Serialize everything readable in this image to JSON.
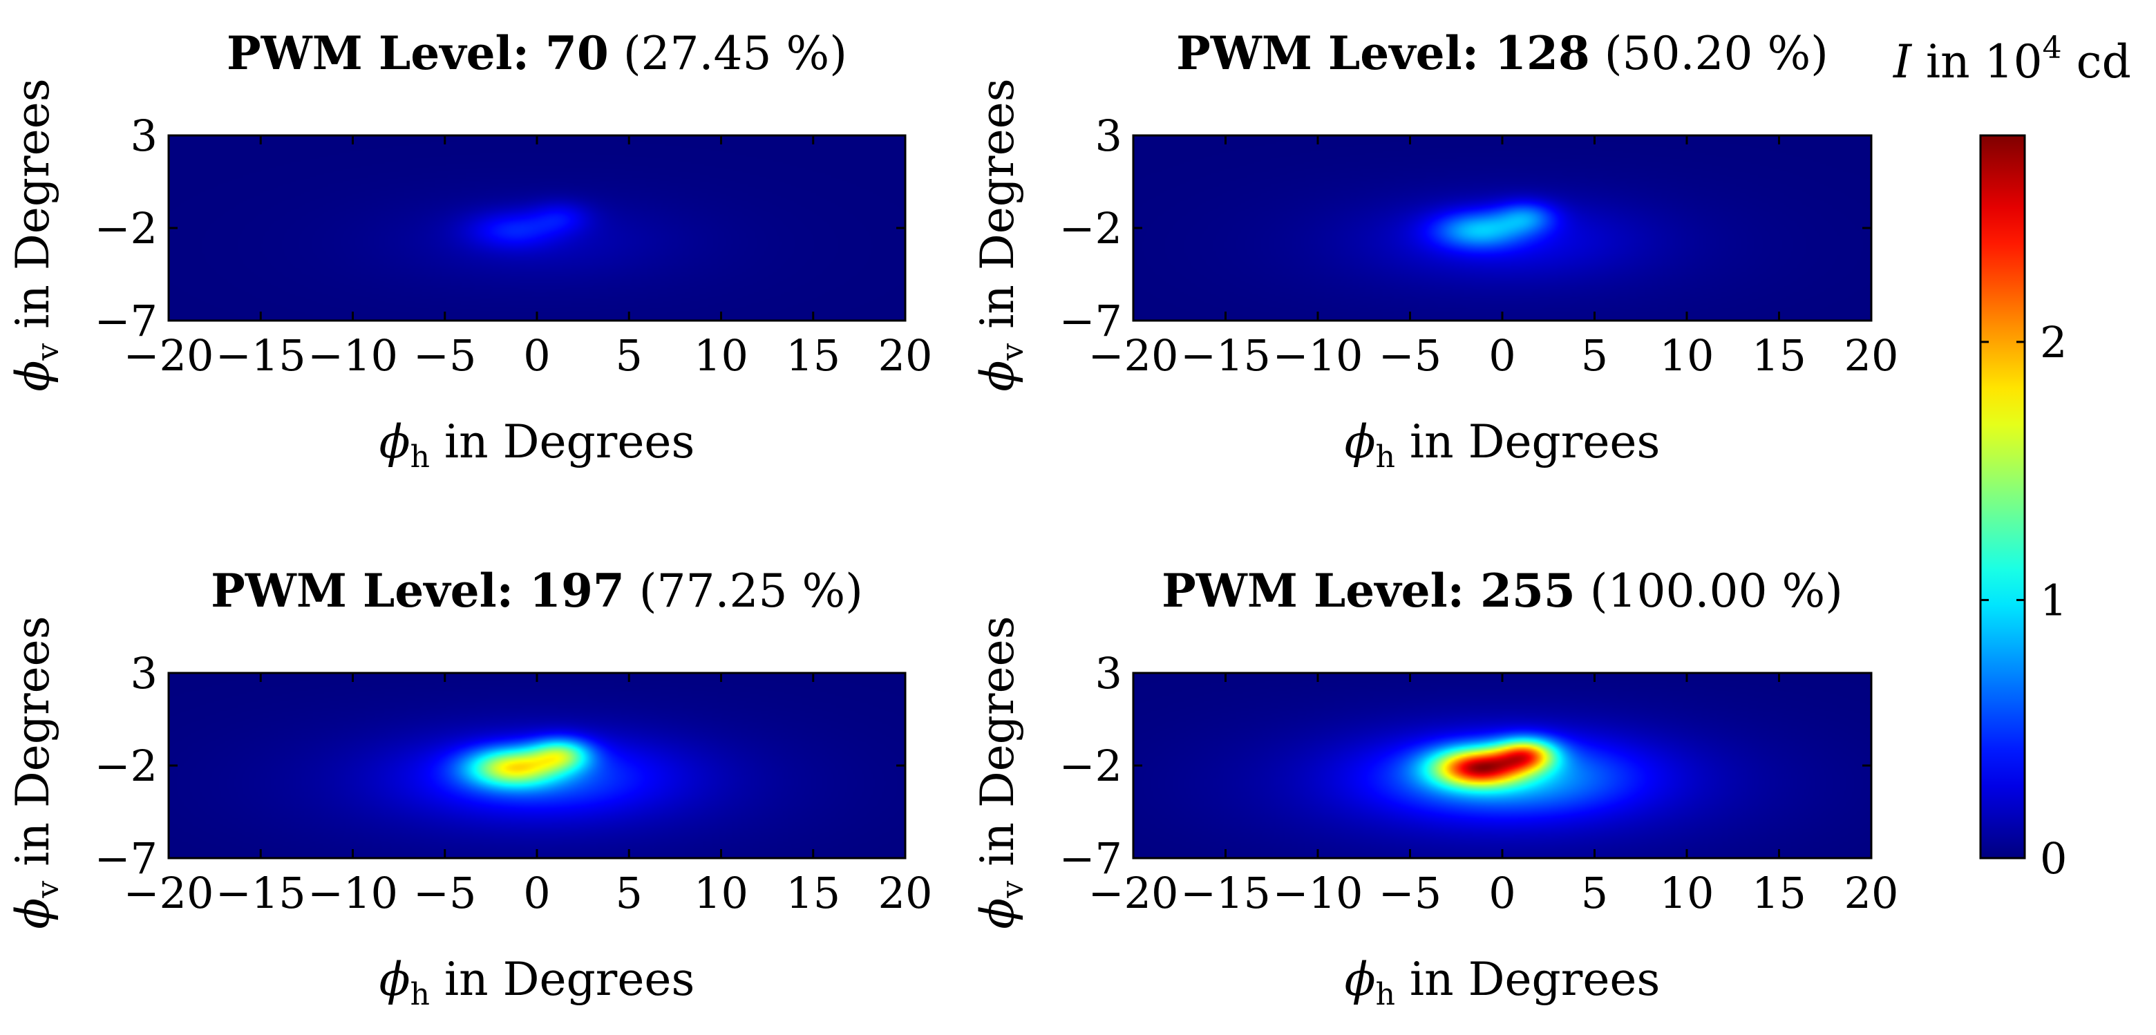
{
  "chart_data": [
    {
      "type": "heatmap",
      "title_bold": "PWM Level: 70",
      "title_plain": "(27.45 %)",
      "pwm_level": 70,
      "duty_percent": 27.45,
      "peak_intensity": 0.45,
      "xlim": [
        -20,
        20
      ],
      "ylim": [
        -7,
        3
      ],
      "xticks": [
        -20,
        -15,
        -10,
        -5,
        0,
        5,
        10,
        15,
        20
      ],
      "yticks": [
        3,
        -2,
        -7
      ],
      "xlabel": {
        "symbol": "ϕ",
        "subscript": "h",
        "text": " in Degrees"
      },
      "ylabel": {
        "symbol": "ϕ",
        "subscript": "v",
        "text": " in Degrees"
      }
    },
    {
      "type": "heatmap",
      "title_bold": "PWM Level: 128",
      "title_plain": "(50.20 %)",
      "pwm_level": 128,
      "duty_percent": 50.2,
      "peak_intensity": 0.92,
      "xlim": [
        -20,
        20
      ],
      "ylim": [
        -7,
        3
      ],
      "xticks": [
        -20,
        -15,
        -10,
        -5,
        0,
        5,
        10,
        15,
        20
      ],
      "yticks": [
        3,
        -2,
        -7
      ],
      "xlabel": {
        "symbol": "ϕ",
        "subscript": "h",
        "text": " in Degrees"
      },
      "ylabel": {
        "symbol": "ϕ",
        "subscript": "v",
        "text": " in Degrees"
      }
    },
    {
      "type": "heatmap",
      "title_bold": "PWM Level: 197",
      "title_plain": "(77.25 %)",
      "pwm_level": 197,
      "duty_percent": 77.25,
      "peak_intensity": 1.85,
      "xlim": [
        -20,
        20
      ],
      "ylim": [
        -7,
        3
      ],
      "xticks": [
        -20,
        -15,
        -10,
        -5,
        0,
        5,
        10,
        15,
        20
      ],
      "yticks": [
        3,
        -2,
        -7
      ],
      "xlabel": {
        "symbol": "ϕ",
        "subscript": "h",
        "text": " in Degrees"
      },
      "ylabel": {
        "symbol": "ϕ",
        "subscript": "v",
        "text": " in Degrees"
      }
    },
    {
      "type": "heatmap",
      "title_bold": "PWM Level: 255",
      "title_plain": "(100.00 %)",
      "pwm_level": 255,
      "duty_percent": 100.0,
      "peak_intensity": 2.75,
      "xlim": [
        -20,
        20
      ],
      "ylim": [
        -7,
        3
      ],
      "xticks": [
        -20,
        -15,
        -10,
        -5,
        0,
        5,
        10,
        15,
        20
      ],
      "yticks": [
        3,
        -2,
        -7
      ],
      "xlabel": {
        "symbol": "ϕ",
        "subscript": "h",
        "text": " in Degrees"
      },
      "ylabel": {
        "symbol": "ϕ",
        "subscript": "v",
        "text": " in Degrees"
      }
    }
  ],
  "colorbar": {
    "label_symbol": "I",
    "label_text": " in 10",
    "label_exponent": "4",
    "label_unit": " cd",
    "min": 0,
    "max": 2.8,
    "ticks": [
      0,
      1,
      2
    ],
    "colormap": "jet",
    "colormap_stops": [
      "#00008f",
      "#0000ff",
      "#00ffff",
      "#ffff00",
      "#ff0000",
      "#800000"
    ]
  }
}
